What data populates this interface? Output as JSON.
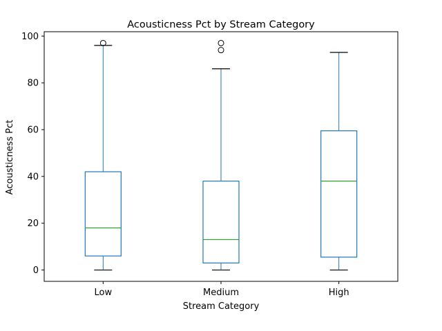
{
  "chart_data": {
    "type": "box",
    "title": "Acousticness Pct by Stream Category",
    "xlabel": "Stream Category",
    "ylabel": "Acousticness Pct",
    "ylim": [
      -4.85,
      101.85
    ],
    "yticks": [
      0,
      20,
      40,
      60,
      80,
      100
    ],
    "grid": false,
    "categories": [
      "Low",
      "Medium",
      "High"
    ],
    "boxes": [
      {
        "category": "Low",
        "whisker_low": 0,
        "q1": 6,
        "median": 18,
        "q3": 42,
        "whisker_high": 96,
        "outliers": [
          97
        ]
      },
      {
        "category": "Medium",
        "whisker_low": 0,
        "q1": 3,
        "median": 13,
        "q3": 38,
        "whisker_high": 86,
        "outliers": [
          94,
          97
        ]
      },
      {
        "category": "High",
        "whisker_low": 0,
        "q1": 5.5,
        "median": 38,
        "q3": 59.5,
        "whisker_high": 93,
        "outliers": []
      }
    ],
    "colors": {
      "box": "#1f77b4",
      "median": "#2ca02c",
      "whisker_cap": "#000000",
      "outlier": "#000000",
      "axes": "#000000"
    }
  }
}
